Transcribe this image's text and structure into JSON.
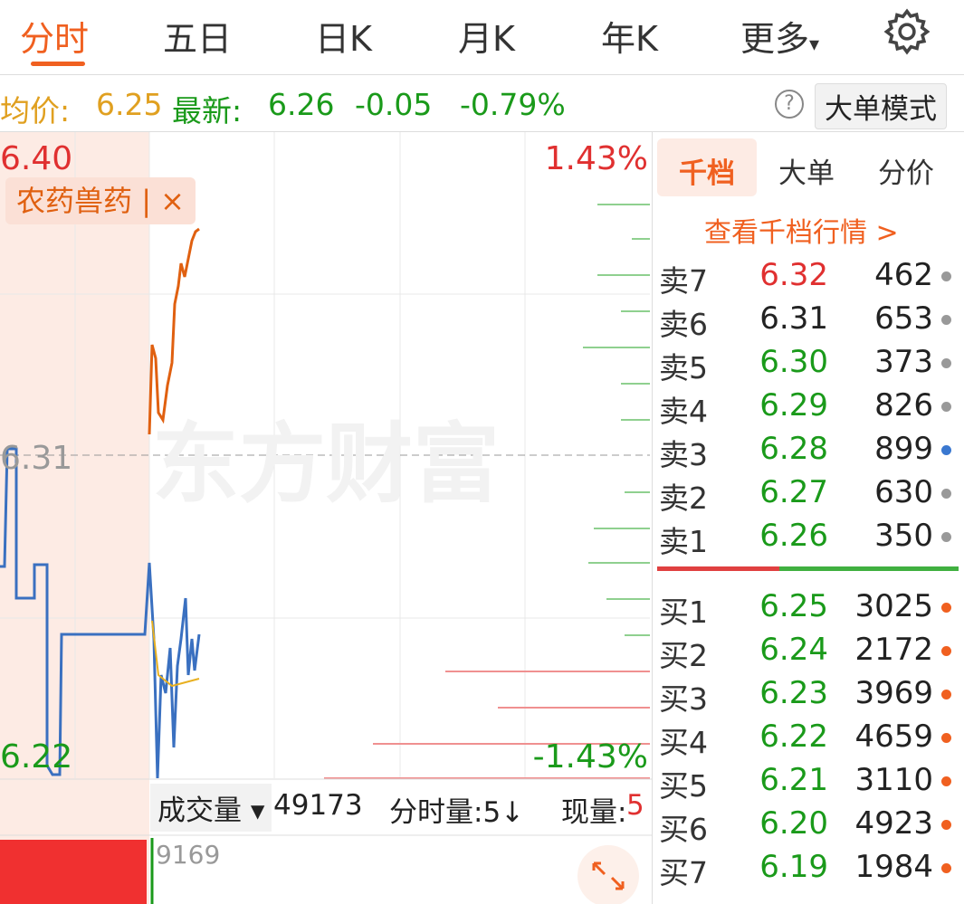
{
  "tabs": [
    "分时",
    "五日",
    "日K",
    "月K",
    "年K",
    "更多"
  ],
  "quote": {
    "avg_label": "均价:",
    "avg": "6.25",
    "latest_label": "最新:",
    "latest": "6.26",
    "change": "-0.05",
    "change_pct": "-0.79%"
  },
  "help": "?",
  "mode_button": "大单模式",
  "chart": {
    "price_high": "6.40",
    "price_mid": "6.31",
    "price_low": "6.22",
    "pct_high": "1.43%",
    "pct_low": "-1.43%",
    "tag": "农药兽药",
    "tag_close": "×",
    "watermark": "东方财富"
  },
  "volume_bar": {
    "selector": "成交量",
    "volume": "49173",
    "tick_volume": "分时量:5↓",
    "current_label": "现量:",
    "current": "5",
    "vol_max": "9169"
  },
  "book": {
    "tabs": [
      "千档",
      "大单",
      "分价"
    ],
    "link": "查看千档行情 >",
    "sells": [
      {
        "label": "卖7",
        "price": "6.32",
        "qty": "462",
        "price_color": "#e03030",
        "dot_color": "#999"
      },
      {
        "label": "卖6",
        "price": "6.31",
        "qty": "653",
        "price_color": "#222",
        "dot_color": "#999"
      },
      {
        "label": "卖5",
        "price": "6.30",
        "qty": "373",
        "price_color": "#1a9a1a",
        "dot_color": "#999"
      },
      {
        "label": "卖4",
        "price": "6.29",
        "qty": "826",
        "price_color": "#1a9a1a",
        "dot_color": "#999"
      },
      {
        "label": "卖3",
        "price": "6.28",
        "qty": "899",
        "price_color": "#1a9a1a",
        "dot_color": "#3a78d0"
      },
      {
        "label": "卖2",
        "price": "6.27",
        "qty": "630",
        "price_color": "#1a9a1a",
        "dot_color": "#999"
      },
      {
        "label": "卖1",
        "price": "6.26",
        "qty": "350",
        "price_color": "#1a9a1a",
        "dot_color": "#999"
      }
    ],
    "buys": [
      {
        "label": "买1",
        "price": "6.25",
        "qty": "3025",
        "price_color": "#1a9a1a",
        "dot_color": "#f06020"
      },
      {
        "label": "买2",
        "price": "6.24",
        "qty": "2172",
        "price_color": "#1a9a1a",
        "dot_color": "#f06020"
      },
      {
        "label": "买3",
        "price": "6.23",
        "qty": "3969",
        "price_color": "#1a9a1a",
        "dot_color": "#f06020"
      },
      {
        "label": "买4",
        "price": "6.22",
        "qty": "4659",
        "price_color": "#1a9a1a",
        "dot_color": "#f06020"
      },
      {
        "label": "买5",
        "price": "6.21",
        "qty": "3110",
        "price_color": "#1a9a1a",
        "dot_color": "#f06020"
      },
      {
        "label": "买6",
        "price": "6.20",
        "qty": "4923",
        "price_color": "#1a9a1a",
        "dot_color": "#f06020"
      },
      {
        "label": "买7",
        "price": "6.19",
        "qty": "1984",
        "price_color": "#1a9a1a",
        "dot_color": "#f06020"
      }
    ]
  }
}
